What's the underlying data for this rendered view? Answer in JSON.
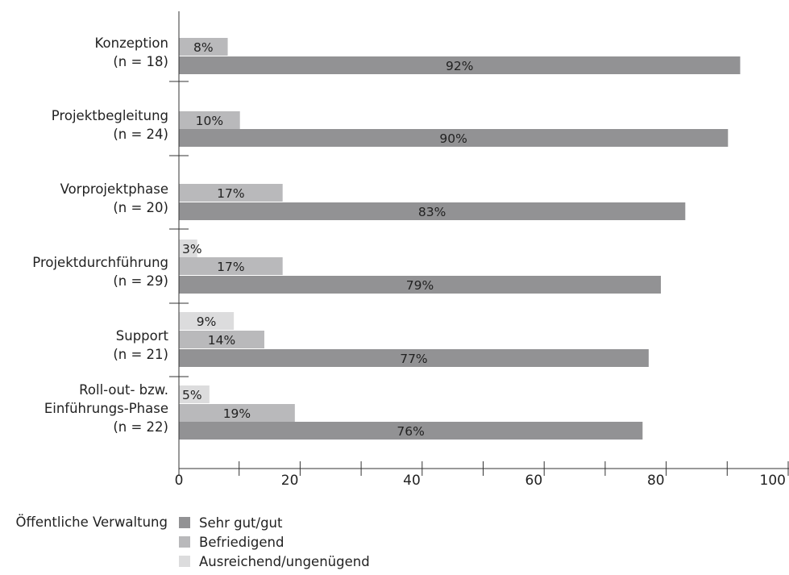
{
  "chart_data": {
    "type": "bar",
    "orientation": "horizontal",
    "legend_title": "Öffentliche Verwaltung",
    "categories": [
      [
        "Konzeption",
        "(n = 18)"
      ],
      [
        "Projektbegleitung",
        "(n = 24)"
      ],
      [
        "Vorprojektphase",
        "(n = 20)"
      ],
      [
        "Projektdurchführung",
        "(n = 29)"
      ],
      [
        "Support",
        "(n = 21)"
      ],
      [
        "Roll-out- bzw.",
        "Einführungs-Phase",
        "(n = 22)"
      ]
    ],
    "series": [
      {
        "name": "Sehr gut/gut",
        "color": "#929294",
        "values": [
          92,
          90,
          83,
          79,
          77,
          76
        ],
        "labels": [
          "92%",
          "90%",
          "83%",
          "79%",
          "77%",
          "76%"
        ]
      },
      {
        "name": "Befriedigend",
        "color": "#b9b9bb",
        "values": [
          8,
          10,
          17,
          17,
          14,
          19
        ],
        "labels": [
          "8%",
          "10%",
          "17%",
          "17%",
          "14%",
          "19%"
        ]
      },
      {
        "name": "Ausreichend/ungenügend",
        "color": "#dcdcdd",
        "values": [
          null,
          null,
          null,
          3,
          9,
          5
        ],
        "labels": [
          "",
          "",
          "",
          "3%",
          "9%",
          "5%"
        ]
      }
    ],
    "xlim": [
      0,
      100
    ],
    "xticks": [
      0,
      20,
      40,
      60,
      80,
      100
    ],
    "xtick_labels": [
      "0",
      "20",
      "40",
      "60",
      "80",
      "100"
    ],
    "grid": false,
    "legend_position": "bottom-center"
  }
}
